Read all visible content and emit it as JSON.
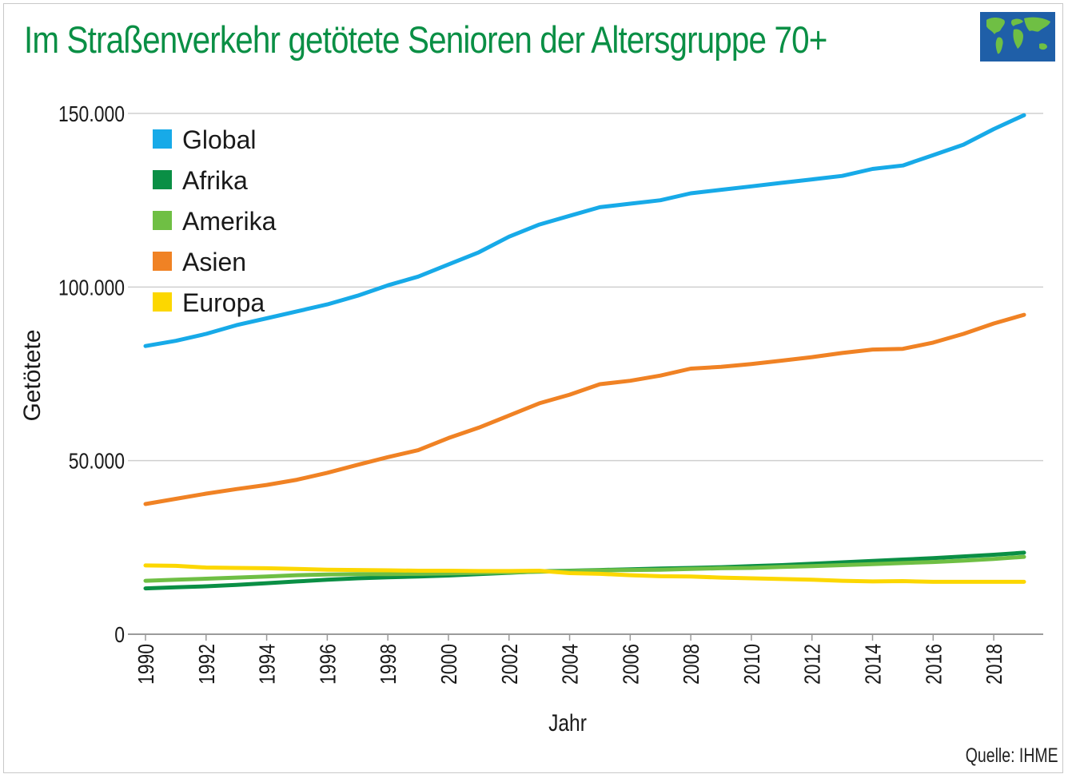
{
  "title": "Im Straßenverkehr getötete Senioren der Altersgruppe 70+",
  "source": "Quelle: IHME",
  "icon": "world-map-icon",
  "chart_data": {
    "type": "line",
    "xlabel": "Jahr",
    "ylabel": "Getötete",
    "ylim": [
      0,
      150000
    ],
    "xlim": [
      1990,
      2019
    ],
    "yticks": [
      0,
      50000,
      100000,
      150000
    ],
    "ytick_labels": [
      "0",
      "50.000",
      "100.000",
      "150.000"
    ],
    "xticks": [
      1990,
      1992,
      1994,
      1996,
      1998,
      2000,
      2002,
      2004,
      2006,
      2008,
      2010,
      2012,
      2014,
      2016,
      2018
    ],
    "xtick_labels": [
      "1990",
      "1992",
      "1994",
      "1996",
      "1998",
      "2000",
      "2002",
      "2004",
      "2006",
      "2008",
      "2010",
      "2012",
      "2014",
      "2016",
      "2018"
    ],
    "grid": "horizontal",
    "legend_position": "top-left",
    "x": [
      1990,
      1991,
      1992,
      1993,
      1994,
      1995,
      1996,
      1997,
      1998,
      1999,
      2000,
      2001,
      2002,
      2003,
      2004,
      2005,
      2006,
      2007,
      2008,
      2009,
      2010,
      2011,
      2012,
      2013,
      2014,
      2015,
      2016,
      2017,
      2018,
      2019
    ],
    "series": [
      {
        "name": "Global",
        "color": "#17aae8",
        "values": [
          83000,
          84500,
          86500,
          89000,
          91000,
          93000,
          95000,
          97500,
          100500,
          103000,
          106500,
          110000,
          114500,
          118000,
          120500,
          123000,
          124000,
          125000,
          127000,
          128000,
          129000,
          130000,
          131000,
          132000,
          134000,
          135000,
          138000,
          141000,
          145500,
          149500
        ]
      },
      {
        "name": "Afrika",
        "color": "#0a8f45",
        "values": [
          13200,
          13500,
          13800,
          14200,
          14700,
          15200,
          15700,
          16100,
          16400,
          16600,
          16900,
          17300,
          17700,
          18100,
          18300,
          18500,
          18700,
          18900,
          19100,
          19300,
          19600,
          19900,
          20300,
          20700,
          21100,
          21500,
          21900,
          22400,
          22900,
          23500
        ]
      },
      {
        "name": "Amerika",
        "color": "#6fbf44",
        "values": [
          15400,
          15700,
          16000,
          16300,
          16600,
          17000,
          17200,
          17300,
          17300,
          17400,
          17500,
          17700,
          17800,
          18000,
          18200,
          18400,
          18500,
          18600,
          18800,
          19000,
          19100,
          19400,
          19600,
          19900,
          20200,
          20500,
          20800,
          21200,
          21700,
          22300
        ]
      },
      {
        "name": "Asien",
        "color": "#f08224",
        "values": [
          37500,
          39000,
          40500,
          41800,
          43000,
          44500,
          46500,
          48800,
          51000,
          53000,
          56500,
          59500,
          63000,
          66500,
          69000,
          72000,
          73000,
          74500,
          76500,
          77000,
          77800,
          78800,
          79800,
          81000,
          82000,
          82200,
          84000,
          86500,
          89500,
          92000
        ]
      },
      {
        "name": "Europa",
        "color": "#fcd700",
        "values": [
          19800,
          19700,
          19200,
          19100,
          19000,
          18800,
          18600,
          18500,
          18400,
          18300,
          18300,
          18200,
          18200,
          18300,
          17600,
          17400,
          17000,
          16700,
          16600,
          16300,
          16100,
          15900,
          15700,
          15400,
          15200,
          15300,
          15100,
          15100,
          15100,
          15100
        ]
      }
    ]
  }
}
